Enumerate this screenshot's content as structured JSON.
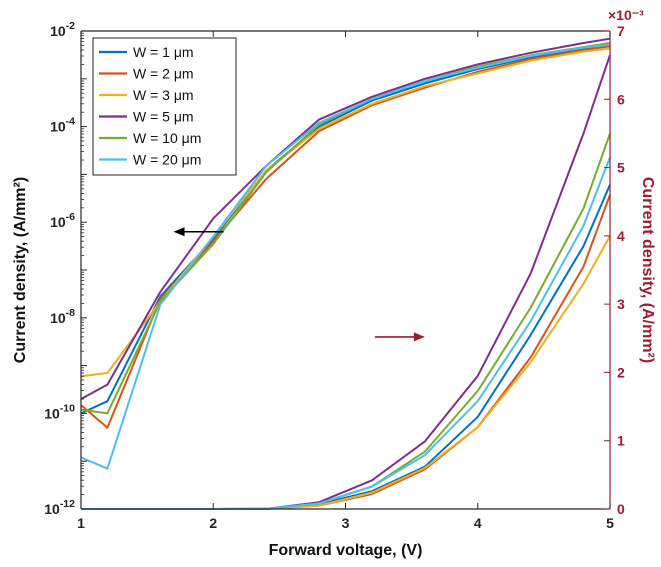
{
  "chart_data": {
    "type": "line",
    "xlabel": "Forward voltage, (V)",
    "ylabel_left": "Current density, (A/mm²)",
    "ylabel_right": "Current density, (A/mm²)",
    "right_axis_multiplier": "×10⁻³",
    "xlim": [
      1,
      5
    ],
    "xticks": [
      "1",
      "2",
      "3",
      "4",
      "5"
    ],
    "left_yscale": "log",
    "left_ylim_exp": [
      -12,
      -2
    ],
    "left_yticks": [
      {
        "base": "10",
        "exp": "-12",
        "e": -12
      },
      {
        "base": "10",
        "exp": "-10",
        "e": -10
      },
      {
        "base": "10",
        "exp": "-8",
        "e": -8
      },
      {
        "base": "10",
        "exp": "-6",
        "e": -6
      },
      {
        "base": "10",
        "exp": "-4",
        "e": -4
      },
      {
        "base": "10",
        "exp": "-2",
        "e": -2
      }
    ],
    "right_ylim": [
      0,
      7
    ],
    "right_yticks": [
      "0",
      "1",
      "2",
      "3",
      "4",
      "5",
      "6",
      "7"
    ],
    "grid": false,
    "legend_position": "top-left",
    "x": [
      1.0,
      1.2,
      1.6,
      2.0,
      2.4,
      2.8,
      3.2,
      3.6,
      4.0,
      4.4,
      4.8,
      5.0
    ],
    "log_series_axis": "left",
    "linear_series_axis": "right",
    "series": [
      {
        "name": "W = 1 μm",
        "color": "#0072bd",
        "log_values": [
          1e-10,
          1.8e-10,
          2.8e-08,
          4.5e-07,
          1.2e-05,
          0.0001,
          0.00035,
          0.0008,
          0.0016,
          0.0028,
          0.0043,
          0.005
        ],
        "linear_values": [
          0,
          0,
          0,
          0,
          0.002,
          0.07,
          0.26,
          0.62,
          1.35,
          2.55,
          3.85,
          4.75
        ]
      },
      {
        "name": "W = 2 μm",
        "color": "#d95319",
        "log_values": [
          1.5e-10,
          5e-11,
          2.5e-08,
          4e-07,
          8e-06,
          8e-05,
          0.00028,
          0.00065,
          0.0014,
          0.0026,
          0.004,
          0.0048
        ],
        "linear_values": [
          0,
          0,
          0,
          0,
          0.002,
          0.05,
          0.22,
          0.58,
          1.2,
          2.22,
          3.55,
          4.6
        ]
      },
      {
        "name": "W = 3 μm",
        "color": "#edb120",
        "log_values": [
          6e-10,
          7e-10,
          2.2e-08,
          5e-07,
          1.2e-05,
          9e-05,
          0.0003,
          0.0007,
          0.0013,
          0.0024,
          0.0037,
          0.0043
        ],
        "linear_values": [
          0,
          0,
          0,
          0,
          0.002,
          0.05,
          0.24,
          0.6,
          1.2,
          2.15,
          3.3,
          4.0
        ]
      },
      {
        "name": "W = 5 μm",
        "color": "#7e2f8e",
        "log_values": [
          2e-10,
          4e-10,
          3.5e-08,
          1.2e-06,
          1.5e-05,
          0.00014,
          0.00042,
          0.001,
          0.002,
          0.0035,
          0.0056,
          0.0069
        ],
        "linear_values": [
          0,
          0,
          0,
          0,
          0.002,
          0.1,
          0.42,
          0.99,
          1.95,
          3.45,
          5.5,
          6.65
        ]
      },
      {
        "name": "W = 10 μm",
        "color": "#77ac30",
        "log_values": [
          1.2e-10,
          1e-10,
          2.2e-08,
          3.5e-07,
          1.1e-05,
          0.00011,
          0.00038,
          0.0009,
          0.0018,
          0.0031,
          0.0046,
          0.0056
        ],
        "linear_values": [
          0,
          0,
          0,
          0,
          0.002,
          0.08,
          0.33,
          0.84,
          1.73,
          2.95,
          4.4,
          5.5
        ]
      },
      {
        "name": "W = 20 μm",
        "color": "#4dbeee",
        "log_values": [
          1.2e-11,
          7e-12,
          1.9e-08,
          5e-07,
          1.5e-05,
          0.00012,
          0.00038,
          0.0009,
          0.0017,
          0.003,
          0.0045,
          0.0052
        ],
        "linear_values": [
          0,
          0,
          0,
          0,
          0.002,
          0.08,
          0.33,
          0.79,
          1.58,
          2.75,
          4.15,
          5.15
        ]
      }
    ],
    "annotations": [
      {
        "type": "arrow",
        "direction": "left",
        "color": "#000000",
        "x": 1.7,
        "log_y": -6.2
      },
      {
        "type": "arrow",
        "direction": "right",
        "color": "#9e1b32",
        "x": 3.6,
        "log_y": -8.4
      }
    ]
  }
}
